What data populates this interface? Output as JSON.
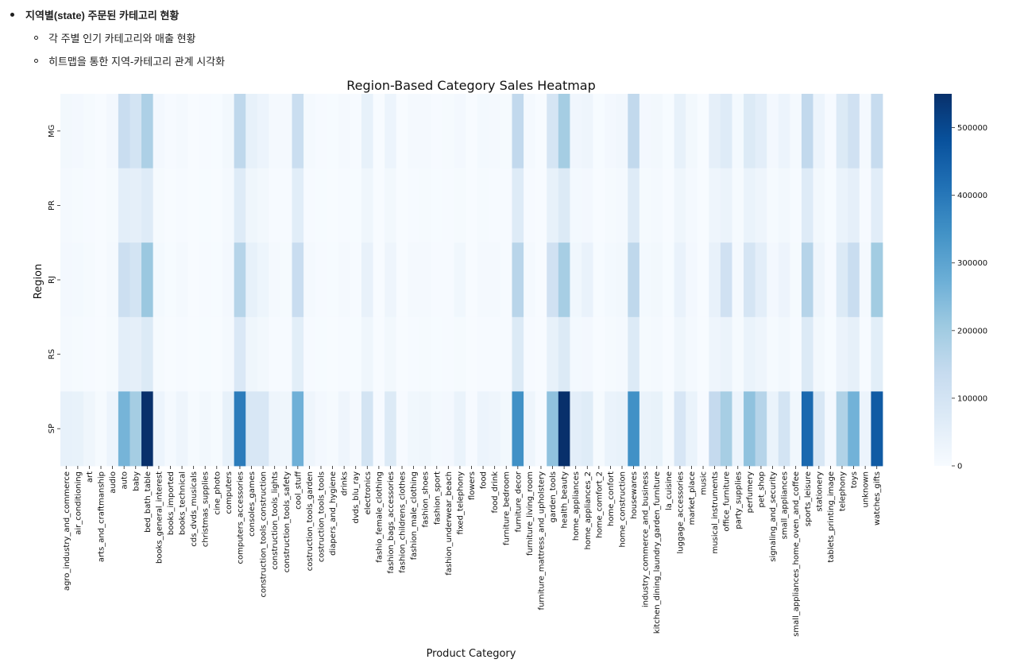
{
  "notes": {
    "heading": "지역별(state) 주문된 카테고리 현황",
    "items": [
      "각 주별 인기 카테고리와 매출 현황",
      "히트맵을 통한 지역-카테고리 관계 시각화"
    ]
  },
  "chart_data": {
    "type": "heatmap",
    "title": "Region-Based Category Sales Heatmap",
    "xlabel": "Product Category",
    "ylabel": "Region",
    "colormap": "Blues",
    "colorbar": {
      "min": 0,
      "max": 550000,
      "ticks": [
        "0",
        "100000",
        "200000",
        "300000",
        "400000",
        "500000"
      ],
      "tick_values": [
        0,
        100000,
        200000,
        300000,
        400000,
        500000
      ]
    },
    "rows": [
      "MG",
      "PR",
      "RJ",
      "RS",
      "SP"
    ],
    "columns": [
      "agro_industry_and_commerce",
      "air_conditioning",
      "art",
      "arts_and_craftmanship",
      "audio",
      "auto",
      "baby",
      "bed_bath_table",
      "books_general_interest",
      "books_imported",
      "books_technical",
      "cds_dvds_musicals",
      "christmas_supplies",
      "cine_photo",
      "computers",
      "computers_accessories",
      "consoles_games",
      "construction_tools_construction",
      "construction_tools_lights",
      "construction_tools_safety",
      "cool_stuff",
      "costruction_tools_garden",
      "costruction_tools_tools",
      "diapers_and_hygiene",
      "drinks",
      "dvds_blu_ray",
      "electronics",
      "fashio_female_clothing",
      "fashion_bags_accessories",
      "fashion_childrens_clothes",
      "fashion_male_clothing",
      "fashion_shoes",
      "fashion_sport",
      "fashion_underwear_beach",
      "fixed_telephony",
      "flowers",
      "food",
      "food_drink",
      "furniture_bedroom",
      "furniture_decor",
      "furniture_living_room",
      "furniture_mattress_and_upholstery",
      "garden_tools",
      "health_beauty",
      "home_appliances",
      "home_appliances_2",
      "home_comfort_2",
      "home_confort",
      "home_construction",
      "housewares",
      "industry_commerce_and_business",
      "kitchen_dining_laundry_garden_furniture",
      "la_cuisine",
      "luggage_accessories",
      "market_place",
      "music",
      "musical_instruments",
      "office_furniture",
      "party_supplies",
      "perfumery",
      "pet_shop",
      "signaling_and_security",
      "small_appliances",
      "small_appliances_home_oven_and_coffee",
      "sports_leisure",
      "stationery",
      "tablets_printing_image",
      "telephony",
      "toys",
      "unknown",
      "watches_gifts"
    ],
    "values": [
      [
        15000,
        12000,
        6000,
        1000,
        11000,
        130000,
        100000,
        180000,
        12000,
        3000,
        9000,
        1000,
        4000,
        2000,
        14000,
        150000,
        45000,
        30000,
        9000,
        8000,
        125000,
        8000,
        4000,
        2000,
        9000,
        3000,
        45000,
        1000,
        30000,
        1000,
        8000,
        9000,
        4000,
        5000,
        12000,
        1000,
        10000,
        8000,
        5000,
        145000,
        9000,
        1000,
        95000,
        195000,
        20000,
        25000,
        2000,
        12000,
        16000,
        145000,
        12000,
        15000,
        2000,
        45000,
        14000,
        1000,
        50000,
        70000,
        10000,
        75000,
        55000,
        12000,
        30000,
        7000,
        145000,
        30000,
        4000,
        75000,
        110000,
        9000,
        135000
      ],
      [
        7000,
        6000,
        3000,
        1000,
        5000,
        55000,
        50000,
        70000,
        6000,
        1000,
        4000,
        1000,
        2000,
        1000,
        7000,
        70000,
        22000,
        15000,
        4000,
        4000,
        60000,
        4000,
        2000,
        1000,
        4000,
        2000,
        22000,
        1000,
        15000,
        1000,
        4000,
        5000,
        2000,
        3000,
        6000,
        1000,
        5000,
        4000,
        3000,
        70000,
        4000,
        1000,
        45000,
        75000,
        10000,
        12000,
        1000,
        6000,
        8000,
        70000,
        6000,
        7000,
        1000,
        22000,
        7000,
        1000,
        24000,
        34000,
        5000,
        36000,
        26000,
        6000,
        15000,
        3000,
        70000,
        15000,
        2000,
        36000,
        50000,
        4000,
        60000
      ],
      [
        12000,
        10000,
        5000,
        1000,
        9000,
        120000,
        100000,
        210000,
        10000,
        2000,
        7000,
        1000,
        3000,
        2000,
        12000,
        165000,
        45000,
        27000,
        7000,
        6000,
        130000,
        7000,
        3000,
        2000,
        7000,
        3000,
        42000,
        1000,
        25000,
        1000,
        7000,
        7000,
        3000,
        4000,
        18000,
        1000,
        8000,
        7000,
        4000,
        160000,
        7000,
        1000,
        110000,
        190000,
        18000,
        38000,
        2000,
        10000,
        14000,
        150000,
        10000,
        14000,
        2000,
        38000,
        12000,
        1000,
        42000,
        110000,
        8000,
        95000,
        55000,
        12000,
        28000,
        6000,
        165000,
        26000,
        3000,
        75000,
        130000,
        9000,
        200000
      ],
      [
        7000,
        5000,
        3000,
        1000,
        5000,
        55000,
        50000,
        75000,
        5000,
        1000,
        4000,
        1000,
        2000,
        1000,
        7000,
        80000,
        22000,
        14000,
        4000,
        4000,
        58000,
        4000,
        2000,
        1000,
        4000,
        2000,
        22000,
        1000,
        13000,
        1000,
        4000,
        5000,
        2000,
        3000,
        6000,
        1000,
        4000,
        4000,
        3000,
        75000,
        4000,
        1000,
        45000,
        75000,
        10000,
        12000,
        1000,
        6000,
        8000,
        75000,
        6000,
        7000,
        1000,
        22000,
        7000,
        1000,
        24000,
        34000,
        5000,
        36000,
        24000,
        6000,
        14000,
        3000,
        75000,
        14000,
        2000,
        34000,
        48000,
        4000,
        58000
      ],
      [
        45000,
        40000,
        22000,
        5000,
        30000,
        260000,
        195000,
        550000,
        30000,
        8000,
        25000,
        5000,
        14000,
        6000,
        45000,
        390000,
        85000,
        85000,
        25000,
        22000,
        270000,
        25000,
        12000,
        6000,
        25000,
        8000,
        100000,
        3000,
        75000,
        3000,
        18000,
        22000,
        10000,
        12000,
        35000,
        3000,
        30000,
        25000,
        14000,
        345000,
        25000,
        3000,
        225000,
        550000,
        55000,
        65000,
        5000,
        35000,
        40000,
        345000,
        35000,
        40000,
        5000,
        90000,
        35000,
        3000,
        140000,
        190000,
        30000,
        225000,
        165000,
        35000,
        100000,
        18000,
        430000,
        85000,
        12000,
        175000,
        265000,
        30000,
        460000
      ]
    ]
  }
}
